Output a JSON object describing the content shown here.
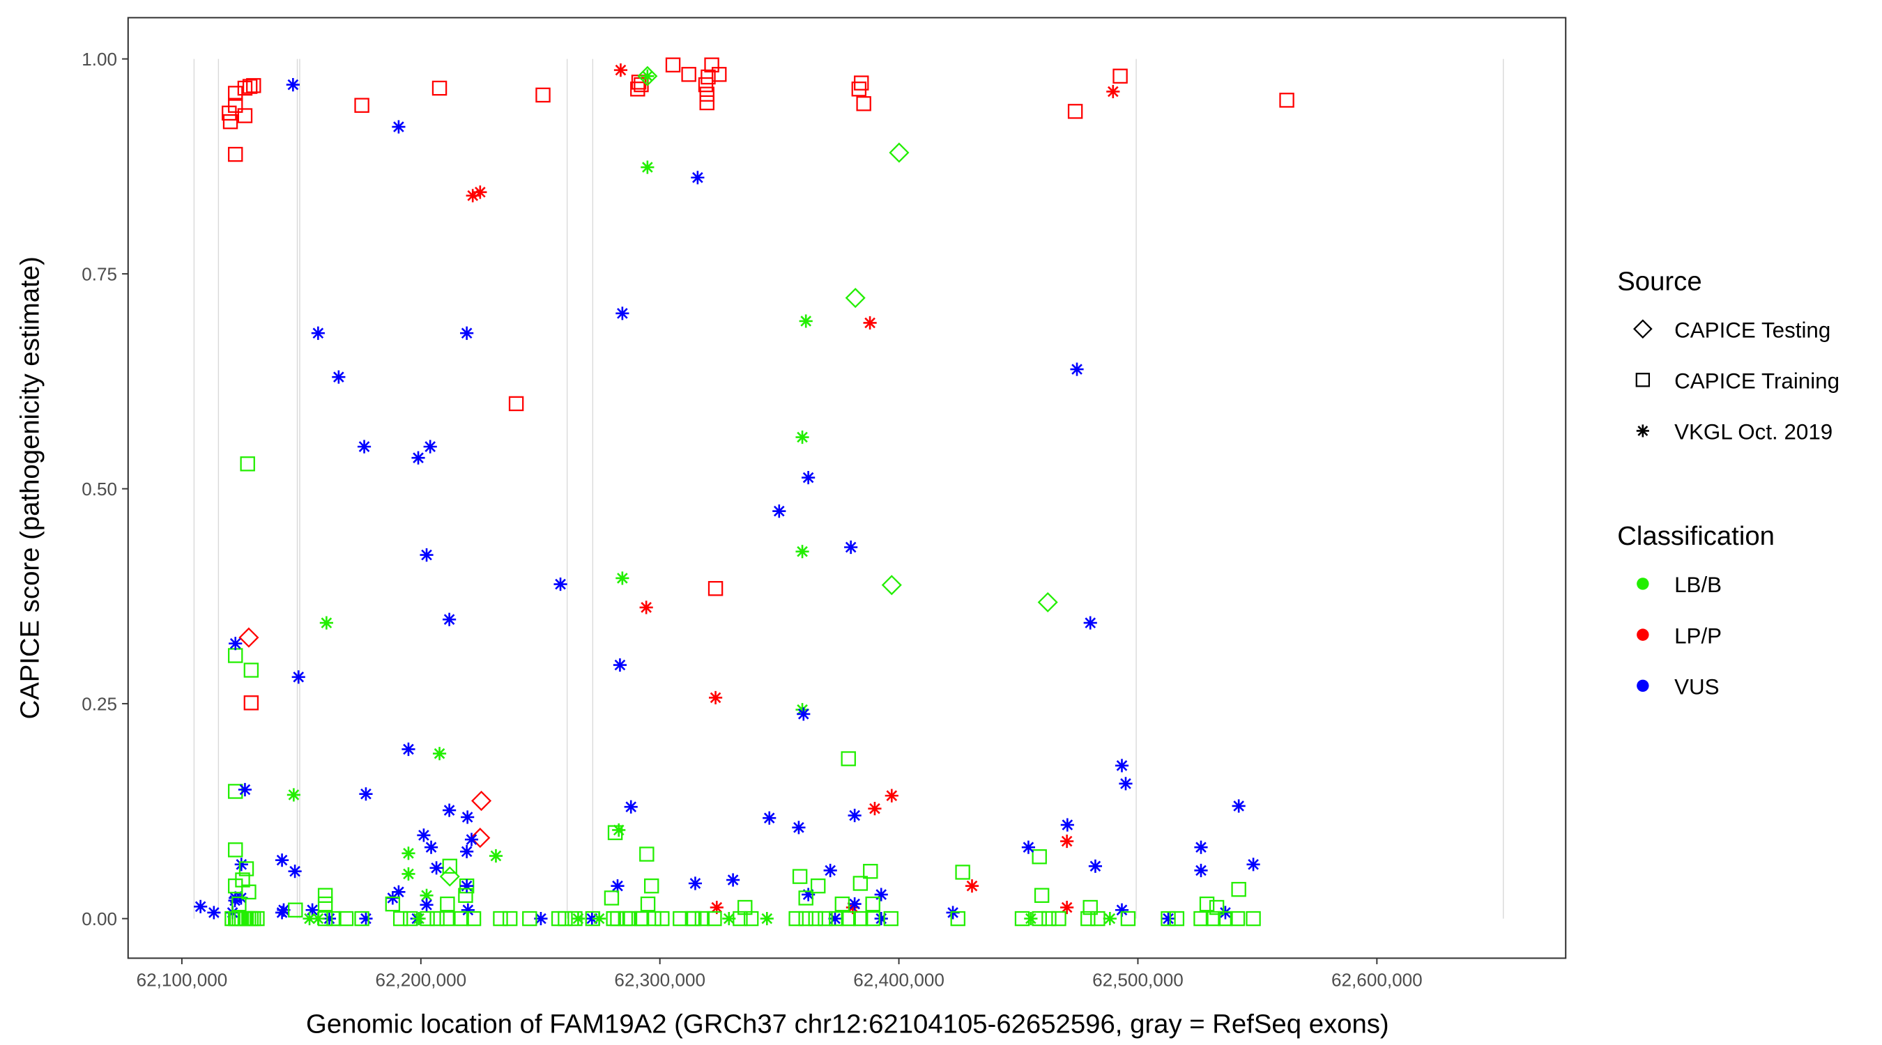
{
  "chart_data": {
    "type": "scatter",
    "xlabel": "Genomic location of FAM19A2 (GRCh37 chr12:62104105-62652596, gray = RefSeq exons)",
    "ylabel": "CAPICE score (pathogenicity estimate)",
    "x_unit": "kb",
    "xlim": [
      62077.5,
      62679
    ],
    "ylim": [
      -0.046,
      1.048
    ],
    "x_ticks": [
      62100000,
      62200000,
      62300000,
      62400000,
      62500000,
      62600000
    ],
    "x_tick_labels": [
      "62,100,000",
      "62,200,000",
      "62,300,000",
      "62,400,000",
      "62,500,000",
      "62,600,000"
    ],
    "y_ticks": [
      0,
      0.25,
      0.5,
      0.75,
      1.0
    ],
    "y_tick_labels": [
      "0.00",
      "0.25",
      "0.50",
      "0.75",
      "1.00"
    ],
    "grid": false,
    "exons_kb": [
      62105.1,
      62115.3,
      62148.3,
      62149.3,
      62261.2,
      62271.9,
      62499.3,
      62652.9
    ],
    "legend": {
      "placement": "right",
      "source_title": "Source",
      "sources": [
        "CAPICE Testing",
        "CAPICE Training",
        "VKGL Oct. 2019"
      ],
      "source_shapes": [
        "diamond",
        "square",
        "asterisk"
      ],
      "class_title": "Classification",
      "classes": [
        "LB/B",
        "LP/P",
        "VUS"
      ],
      "class_colors": [
        "#22ee00",
        "#ff0000",
        "#0000ff"
      ]
    },
    "point_fields": [
      "position_kb",
      "score",
      "source_index",
      "class_index"
    ],
    "points": [
      [
        62119.8,
        0.937,
        1,
        1
      ],
      [
        62120.3,
        0.927,
        1,
        1
      ],
      [
        62122.4,
        0.946,
        1,
        1
      ],
      [
        62122.4,
        0.889,
        1,
        1
      ],
      [
        62122.4,
        0.96,
        1,
        1
      ],
      [
        62126.4,
        0.934,
        1,
        1
      ],
      [
        62126.4,
        0.966,
        1,
        1
      ],
      [
        62128.5,
        0.968,
        1,
        1
      ],
      [
        62130.0,
        0.969,
        1,
        1
      ],
      [
        62129.0,
        0.251,
        1,
        1
      ],
      [
        62175.3,
        0.946,
        1,
        1
      ],
      [
        62207.8,
        0.966,
        1,
        1
      ],
      [
        62239.9,
        0.599,
        1,
        1
      ],
      [
        62251.1,
        0.958,
        1,
        1
      ],
      [
        62290.7,
        0.965,
        1,
        1
      ],
      [
        62291.2,
        0.973,
        1,
        1
      ],
      [
        62292.2,
        0.97,
        1,
        1
      ],
      [
        62305.5,
        0.993,
        1,
        1
      ],
      [
        62312.1,
        0.982,
        1,
        1
      ],
      [
        62319.2,
        0.97,
        1,
        1
      ],
      [
        62319.7,
        0.959,
        1,
        1
      ],
      [
        62319.7,
        0.949,
        1,
        1
      ],
      [
        62320.2,
        0.979,
        1,
        1
      ],
      [
        62321.7,
        0.993,
        1,
        1
      ],
      [
        62324.8,
        0.982,
        1,
        1
      ],
      [
        62323.3,
        0.384,
        1,
        1
      ],
      [
        62383.3,
        0.965,
        1,
        1
      ],
      [
        62384.3,
        0.972,
        1,
        1
      ],
      [
        62385.3,
        0.948,
        1,
        1
      ],
      [
        62473.8,
        0.939,
        1,
        1
      ],
      [
        62492.6,
        0.98,
        1,
        1
      ],
      [
        62562.3,
        0.952,
        1,
        1
      ],
      [
        62283.6,
        0.987,
        2,
        1
      ],
      [
        62221.7,
        0.841,
        2,
        1
      ],
      [
        62224.8,
        0.845,
        2,
        1
      ],
      [
        62294.3,
        0.362,
        2,
        1
      ],
      [
        62323.3,
        0.257,
        2,
        1
      ],
      [
        62387.9,
        0.693,
        2,
        1
      ],
      [
        62397.0,
        0.143,
        2,
        1
      ],
      [
        62389.9,
        0.128,
        2,
        1
      ],
      [
        62430.6,
        0.038,
        2,
        1
      ],
      [
        62470.3,
        0.09,
        2,
        1
      ],
      [
        62470.3,
        0.013,
        2,
        1
      ],
      [
        62489.6,
        0.962,
        2,
        1
      ],
      [
        62323.8,
        0.013,
        2,
        1
      ],
      [
        62380.7,
        0.013,
        2,
        1
      ],
      [
        62128.0,
        0.327,
        0,
        1
      ],
      [
        62225.3,
        0.137,
        0,
        1
      ],
      [
        62224.8,
        0.094,
        0,
        1
      ],
      [
        62400.1,
        0.891,
        0,
        0
      ],
      [
        62381.8,
        0.722,
        0,
        0
      ],
      [
        62397.0,
        0.388,
        0,
        0
      ],
      [
        62462.3,
        0.368,
        0,
        0
      ],
      [
        62212.1,
        0.049,
        0,
        0
      ],
      [
        62294.8,
        0.98,
        0,
        0
      ],
      [
        62127.5,
        0.529,
        1,
        0
      ],
      [
        62122.4,
        0.306,
        1,
        0
      ],
      [
        62129.0,
        0.289,
        1,
        0
      ],
      [
        62122.4,
        0.148,
        1,
        0
      ],
      [
        62122.4,
        0.08,
        1,
        0
      ],
      [
        62378.9,
        0.186,
        1,
        0
      ],
      [
        62358.6,
        0.049,
        1,
        0
      ],
      [
        62426.7,
        0.054,
        1,
        0
      ],
      [
        62458.8,
        0.072,
        1,
        0
      ],
      [
        62542.2,
        0.034,
        1,
        0
      ],
      [
        62388.1,
        0.055,
        1,
        0
      ],
      [
        62294.5,
        0.075,
        1,
        0
      ],
      [
        62281.3,
        0.1,
        1,
        0
      ],
      [
        62212.1,
        0.061,
        1,
        0
      ],
      [
        62219.2,
        0.038,
        1,
        0
      ],
      [
        62294.8,
        0.874,
        2,
        0
      ],
      [
        62361.1,
        0.695,
        2,
        0
      ],
      [
        62359.6,
        0.56,
        2,
        0
      ],
      [
        62359.6,
        0.427,
        2,
        0
      ],
      [
        62359.6,
        0.243,
        2,
        0
      ],
      [
        62284.3,
        0.396,
        2,
        0
      ],
      [
        62160.5,
        0.344,
        2,
        0
      ],
      [
        62207.8,
        0.192,
        2,
        0
      ],
      [
        62146.8,
        0.144,
        2,
        0
      ],
      [
        62282.8,
        0.103,
        2,
        0
      ],
      [
        62231.4,
        0.073,
        2,
        0
      ],
      [
        62194.8,
        0.076,
        2,
        0
      ],
      [
        62194.8,
        0.052,
        2,
        0
      ],
      [
        62202.4,
        0.027,
        2,
        0
      ],
      [
        62294.8,
        0.98,
        2,
        0
      ],
      [
        62146.5,
        0.97,
        2,
        2
      ],
      [
        62190.7,
        0.921,
        2,
        2
      ],
      [
        62315.8,
        0.862,
        2,
        2
      ],
      [
        62157.0,
        0.681,
        2,
        2
      ],
      [
        62165.6,
        0.63,
        2,
        2
      ],
      [
        62176.3,
        0.549,
        2,
        2
      ],
      [
        62219.2,
        0.681,
        2,
        2
      ],
      [
        62284.3,
        0.704,
        2,
        2
      ],
      [
        62203.9,
        0.549,
        2,
        2
      ],
      [
        62198.9,
        0.536,
        2,
        2
      ],
      [
        62202.4,
        0.423,
        2,
        2
      ],
      [
        62474.5,
        0.639,
        2,
        2
      ],
      [
        62349.9,
        0.474,
        2,
        2
      ],
      [
        62362.1,
        0.513,
        2,
        2
      ],
      [
        62379.9,
        0.432,
        2,
        2
      ],
      [
        62258.4,
        0.389,
        2,
        2
      ],
      [
        62480.1,
        0.344,
        2,
        2
      ],
      [
        62122.4,
        0.32,
        2,
        2
      ],
      [
        62148.8,
        0.281,
        2,
        2
      ],
      [
        62211.9,
        0.348,
        2,
        2
      ],
      [
        62283.3,
        0.295,
        2,
        2
      ],
      [
        62194.8,
        0.197,
        2,
        2
      ],
      [
        62360.1,
        0.238,
        2,
        2
      ],
      [
        62126.4,
        0.15,
        2,
        2
      ],
      [
        62177.0,
        0.145,
        2,
        2
      ],
      [
        62493.3,
        0.178,
        2,
        2
      ],
      [
        62494.9,
        0.157,
        2,
        2
      ],
      [
        62542.2,
        0.131,
        2,
        2
      ],
      [
        62211.9,
        0.126,
        2,
        2
      ],
      [
        62219.5,
        0.118,
        2,
        2
      ],
      [
        62201.2,
        0.097,
        2,
        2
      ],
      [
        62204.3,
        0.083,
        2,
        2
      ],
      [
        62147.3,
        0.055,
        2,
        2
      ],
      [
        62470.5,
        0.109,
        2,
        2
      ],
      [
        62454.2,
        0.083,
        2,
        2
      ],
      [
        62482.2,
        0.061,
        2,
        2
      ],
      [
        62526.4,
        0.083,
        2,
        2
      ],
      [
        62548.3,
        0.063,
        2,
        2
      ],
      [
        62381.5,
        0.12,
        2,
        2
      ],
      [
        62345.8,
        0.117,
        2,
        2
      ],
      [
        62358.1,
        0.106,
        2,
        2
      ],
      [
        62219.2,
        0.078,
        2,
        2
      ],
      [
        62221.2,
        0.092,
        2,
        2
      ],
      [
        62141.9,
        0.068,
        2,
        2
      ],
      [
        62206.5,
        0.059,
        2,
        2
      ],
      [
        62287.9,
        0.13,
        2,
        2
      ],
      [
        62314.8,
        0.041,
        2,
        2
      ],
      [
        62330.6,
        0.045,
        2,
        2
      ],
      [
        62122.4,
        0.024,
        2,
        2
      ],
      [
        62124.9,
        0.063,
        2,
        2
      ],
      [
        62072.2,
        0.021,
        2,
        2
      ],
      [
        62074.8,
        0.024,
        2,
        2
      ],
      [
        62071.2,
        0.007,
        2,
        2
      ],
      [
        62202.4,
        0.016,
        2,
        2
      ],
      [
        62188.2,
        0.024,
        2,
        2
      ],
      [
        62190.7,
        0.031,
        2,
        2
      ],
      [
        62219.2,
        0.038,
        2,
        2
      ],
      [
        62219.7,
        0.01,
        2,
        2
      ],
      [
        62362.1,
        0.028,
        2,
        2
      ],
      [
        62371.3,
        0.056,
        2,
        2
      ],
      [
        62381.5,
        0.017,
        2,
        2
      ],
      [
        62392.6,
        0.028,
        2,
        2
      ],
      [
        62526.4,
        0.056,
        2,
        2
      ],
      [
        62250.2,
        0.0,
        2,
        2
      ],
      [
        62271.6,
        0.0,
        2,
        2
      ],
      [
        62161.7,
        0.0,
        2,
        2
      ],
      [
        62177.0,
        0.0,
        2,
        2
      ],
      [
        62198.4,
        0.0,
        2,
        2
      ],
      [
        62154.6,
        0.01,
        2,
        2
      ],
      [
        62141.9,
        0.007,
        2,
        2
      ],
      [
        62092.6,
        0.01,
        2,
        2
      ],
      [
        62107.8,
        0.014,
        2,
        2
      ],
      [
        62113.4,
        0.007,
        2,
        2
      ],
      [
        62422.6,
        0.007,
        2,
        2
      ],
      [
        62493.3,
        0.01,
        2,
        2
      ],
      [
        62512.7,
        0.0,
        2,
        2
      ],
      [
        62536.6,
        0.007,
        2,
        2
      ],
      [
        62282.3,
        0.038,
        2,
        2
      ],
      [
        62373.3,
        0.0,
        2,
        2
      ],
      [
        62392.6,
        0.0,
        2,
        2
      ],
      [
        62121.0,
        0.0,
        1,
        0
      ],
      [
        62122.4,
        0.0,
        1,
        0
      ],
      [
        62123.0,
        0.0,
        1,
        0
      ],
      [
        62124.0,
        0.0,
        1,
        0
      ],
      [
        62125.0,
        0.0,
        1,
        0
      ],
      [
        62126.4,
        0.0,
        1,
        0
      ],
      [
        62127.0,
        0.0,
        1,
        0
      ],
      [
        62128.0,
        0.0,
        1,
        0
      ],
      [
        62129.0,
        0.0,
        1,
        0
      ],
      [
        62130.0,
        0.0,
        1,
        0
      ],
      [
        62131.5,
        0.0,
        1,
        0
      ],
      [
        62153.4,
        0.0,
        2,
        0
      ],
      [
        62157.0,
        0.0,
        2,
        0
      ],
      [
        62160.0,
        0.0,
        1,
        0
      ],
      [
        62163.6,
        0.0,
        1,
        0
      ],
      [
        62168.7,
        0.0,
        1,
        0
      ],
      [
        62175.3,
        0.0,
        1,
        0
      ],
      [
        62191.5,
        0.0,
        1,
        0
      ],
      [
        62195.6,
        0.0,
        1,
        0
      ],
      [
        62199.2,
        0.0,
        2,
        0
      ],
      [
        62202.7,
        0.0,
        1,
        0
      ],
      [
        62206.8,
        0.0,
        1,
        0
      ],
      [
        62210.9,
        0.0,
        1,
        0
      ],
      [
        62217.0,
        0.0,
        1,
        0
      ],
      [
        62222.1,
        0.0,
        1,
        0
      ],
      [
        62233.3,
        0.0,
        1,
        0
      ],
      [
        62237.3,
        0.0,
        1,
        0
      ],
      [
        62245.5,
        0.0,
        1,
        0
      ],
      [
        62257.7,
        0.0,
        1,
        0
      ],
      [
        62265.8,
        0.0,
        2,
        0
      ],
      [
        62271.9,
        0.0,
        1,
        0
      ],
      [
        62280.6,
        0.0,
        1,
        0
      ],
      [
        62285.6,
        0.0,
        1,
        0
      ],
      [
        62292.2,
        0.0,
        1,
        0
      ],
      [
        62300.9,
        0.0,
        1,
        0
      ],
      [
        62308.5,
        0.0,
        1,
        0
      ],
      [
        62313.6,
        0.0,
        1,
        0
      ],
      [
        62317.7,
        0.0,
        1,
        0
      ],
      [
        62322.8,
        0.0,
        1,
        0
      ],
      [
        62328.9,
        0.0,
        2,
        0
      ],
      [
        62260.4,
        0.0,
        1,
        0
      ],
      [
        62264.5,
        0.0,
        1,
        0
      ],
      [
        62274.6,
        0.0,
        2,
        0
      ],
      [
        62282.3,
        0.0,
        1,
        0
      ],
      [
        62287.4,
        0.0,
        1,
        0
      ],
      [
        62292.4,
        0.0,
        1,
        0
      ],
      [
        62297.5,
        0.0,
        1,
        0
      ],
      [
        62314.3,
        0.0,
        1,
        0
      ],
      [
        62333.6,
        0.0,
        1,
        0
      ],
      [
        62338.2,
        0.0,
        1,
        0
      ],
      [
        62344.8,
        0.0,
        2,
        0
      ],
      [
        62357.0,
        0.0,
        1,
        0
      ],
      [
        62361.1,
        0.0,
        1,
        0
      ],
      [
        62365.2,
        0.0,
        1,
        0
      ],
      [
        62369.2,
        0.0,
        1,
        0
      ],
      [
        62373.8,
        0.0,
        1,
        0
      ],
      [
        62378.9,
        0.0,
        1,
        0
      ],
      [
        62384.0,
        0.0,
        1,
        0
      ],
      [
        62389.1,
        0.0,
        1,
        0
      ],
      [
        62396.7,
        0.0,
        1,
        0
      ],
      [
        62424.7,
        0.0,
        1,
        0
      ],
      [
        62451.6,
        0.0,
        1,
        0
      ],
      [
        62455.2,
        0.0,
        2,
        0
      ],
      [
        62458.8,
        0.0,
        1,
        0
      ],
      [
        62462.8,
        0.0,
        1,
        0
      ],
      [
        62466.9,
        0.0,
        1,
        0
      ],
      [
        62479.1,
        0.0,
        1,
        0
      ],
      [
        62483.2,
        0.0,
        1,
        0
      ],
      [
        62488.3,
        0.0,
        2,
        0
      ],
      [
        62495.9,
        0.0,
        1,
        0
      ],
      [
        62512.7,
        0.0,
        1,
        0
      ],
      [
        62516.3,
        0.0,
        1,
        0
      ],
      [
        62526.4,
        0.0,
        1,
        0
      ],
      [
        62531.5,
        0.0,
        1,
        0
      ],
      [
        62536.6,
        0.0,
        1,
        0
      ],
      [
        62541.7,
        0.0,
        1,
        0
      ],
      [
        62548.3,
        0.0,
        1,
        0
      ],
      [
        62122.4,
        0.038,
        1,
        0
      ],
      [
        62125.4,
        0.045,
        1,
        0
      ],
      [
        62128.0,
        0.031,
        1,
        0
      ],
      [
        62123.9,
        0.017,
        1,
        0
      ],
      [
        62127.0,
        0.058,
        1,
        0
      ],
      [
        62160.0,
        0.027,
        1,
        0
      ],
      [
        62160.0,
        0.017,
        1,
        0
      ],
      [
        62147.5,
        0.01,
        1,
        0
      ],
      [
        62188.2,
        0.017,
        1,
        0
      ],
      [
        62211.1,
        0.017,
        1,
        0
      ],
      [
        62218.7,
        0.027,
        1,
        0
      ],
      [
        62279.8,
        0.024,
        1,
        0
      ],
      [
        62295.0,
        0.017,
        1,
        0
      ],
      [
        62296.5,
        0.038,
        1,
        0
      ],
      [
        62335.6,
        0.013,
        1,
        0
      ],
      [
        62361.1,
        0.024,
        1,
        0
      ],
      [
        62366.2,
        0.038,
        1,
        0
      ],
      [
        62376.3,
        0.017,
        1,
        0
      ],
      [
        62383.9,
        0.041,
        1,
        0
      ],
      [
        62389.1,
        0.017,
        1,
        0
      ],
      [
        62459.8,
        0.027,
        1,
        0
      ],
      [
        62480.1,
        0.013,
        1,
        0
      ],
      [
        62528.9,
        0.017,
        1,
        0
      ],
      [
        62533.0,
        0.013,
        1,
        0
      ]
    ]
  }
}
